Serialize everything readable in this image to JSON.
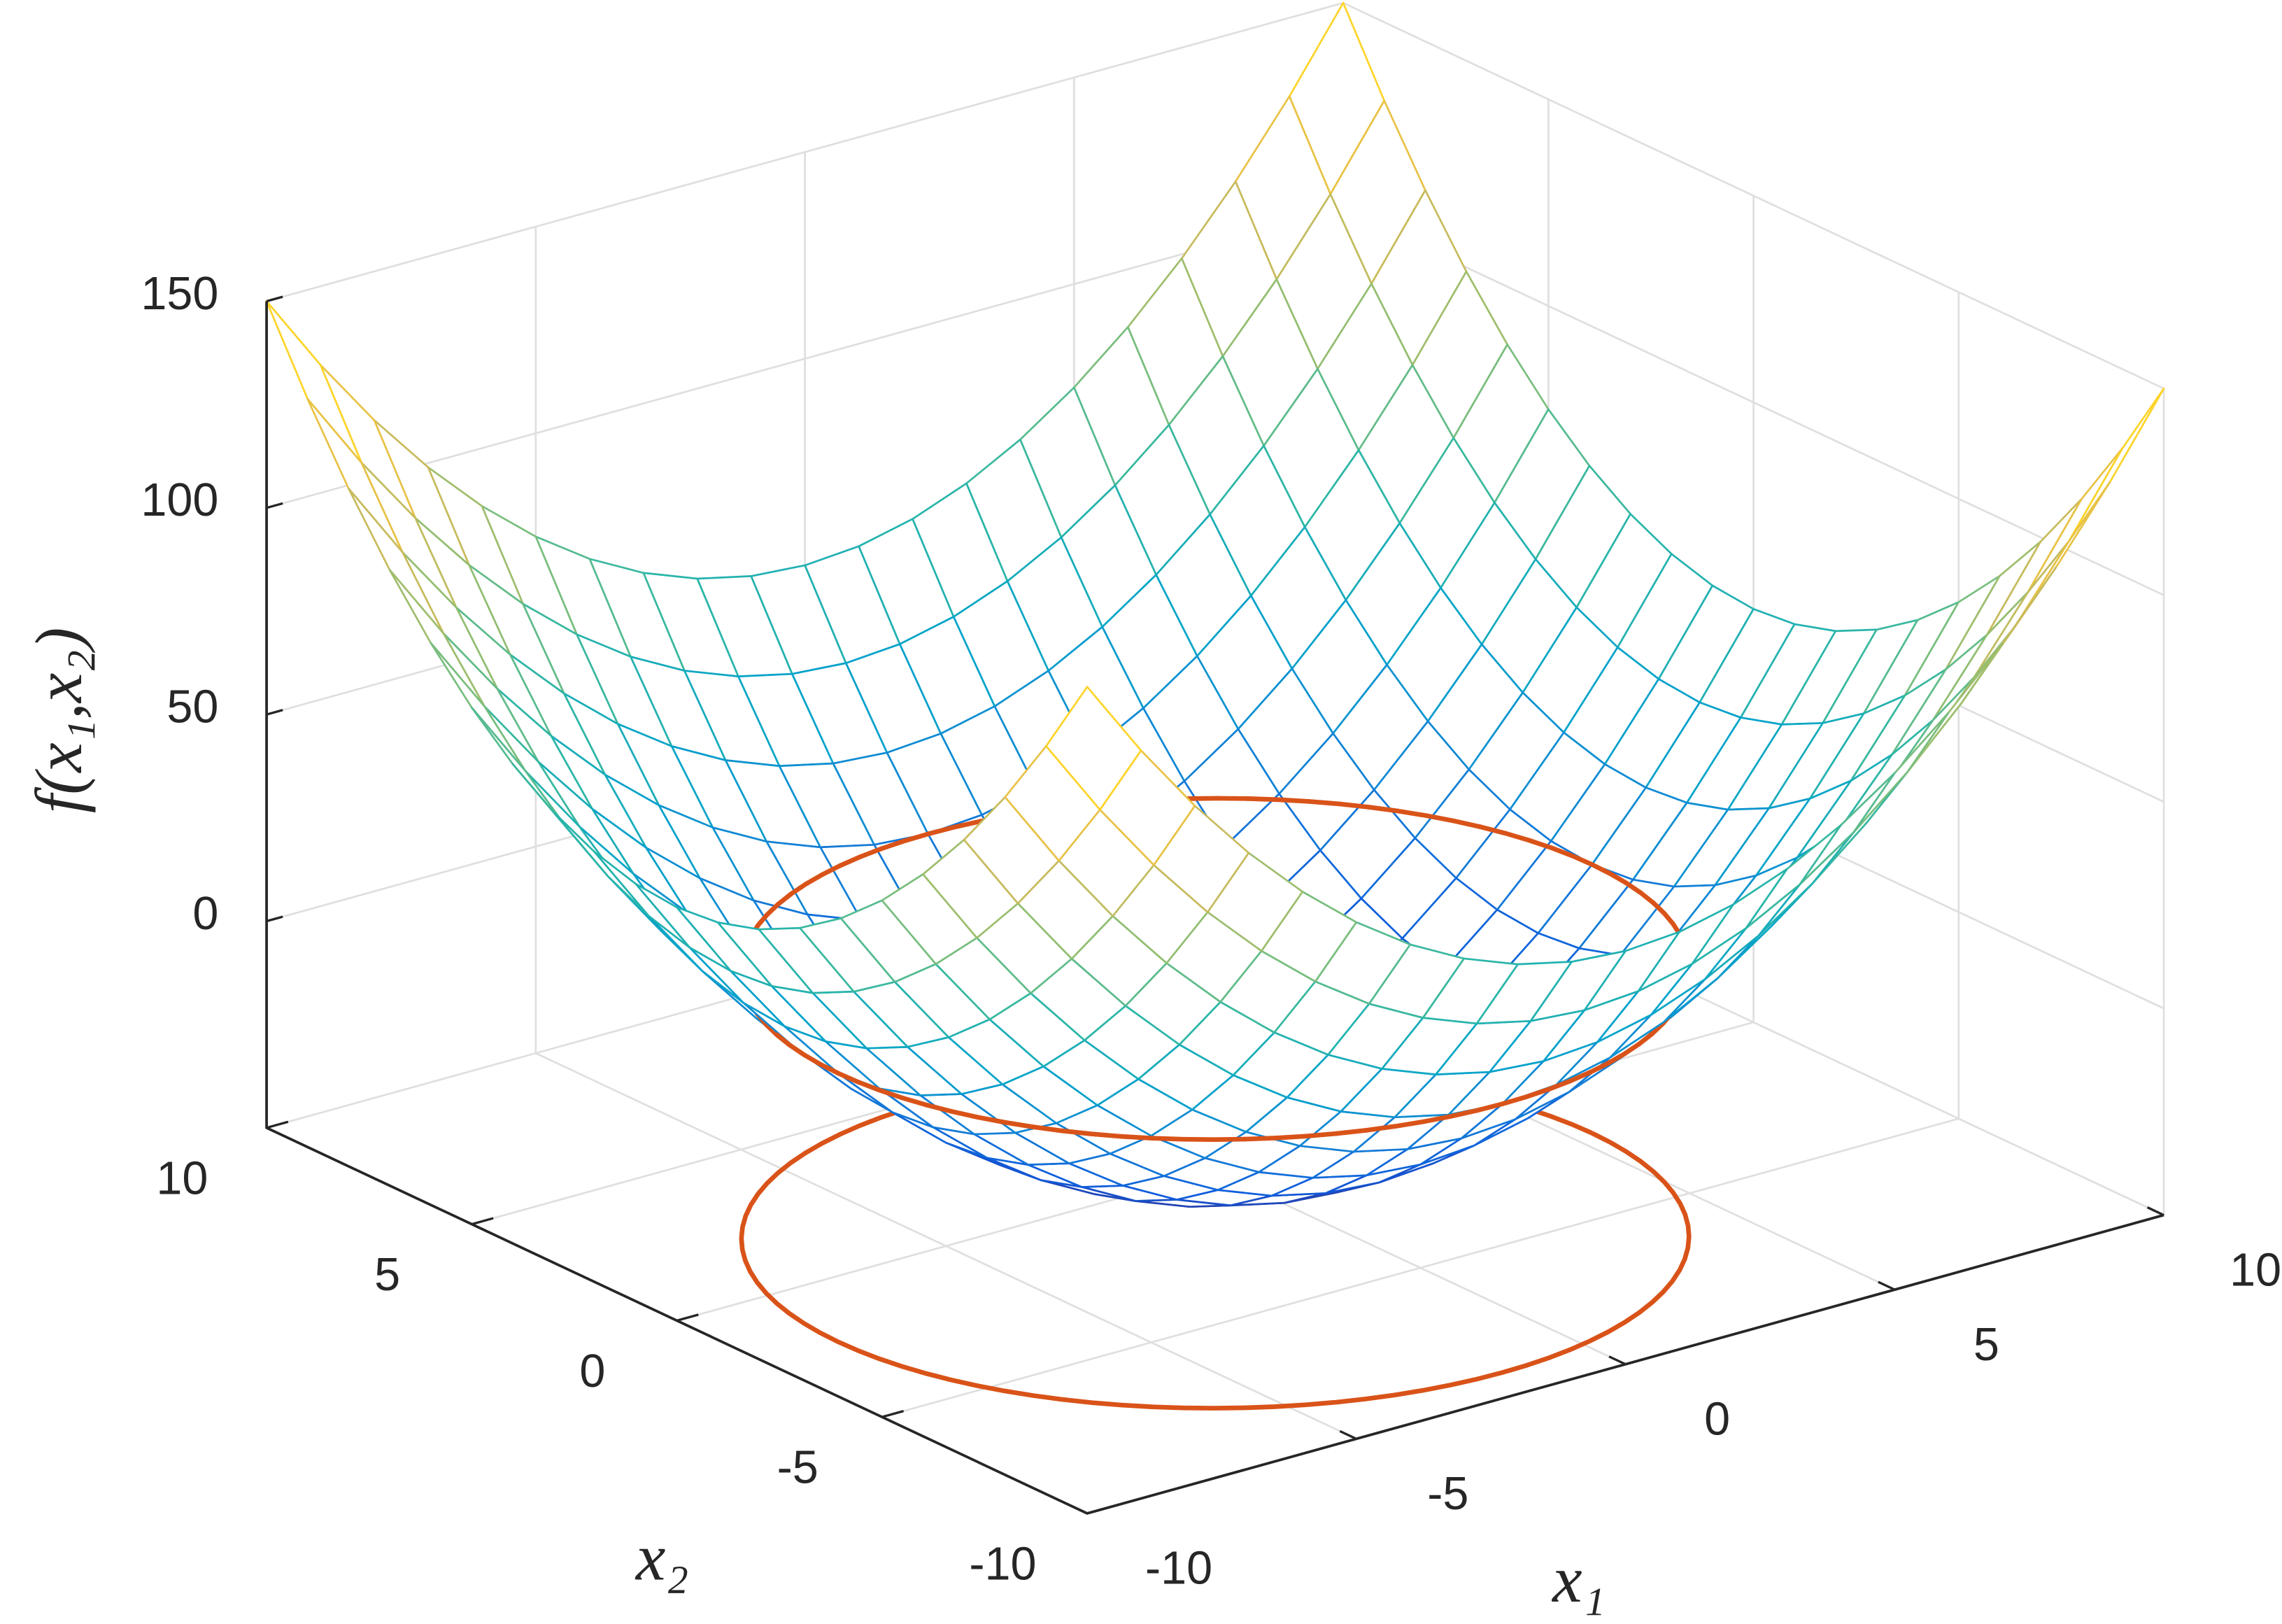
{
  "chart_data": {
    "type": "surface",
    "xlabel": "x₁",
    "ylabel": "x₂",
    "zlabel": "f(x₁,x₂)",
    "xlim": [
      -10,
      10
    ],
    "ylim": [
      -10,
      10
    ],
    "zlim": [
      -50,
      150
    ],
    "xticks": [
      -10,
      -5,
      0,
      5,
      10
    ],
    "yticks": [
      -10,
      -5,
      0,
      5,
      10
    ],
    "zticks": [
      0,
      50,
      100,
      150
    ],
    "grid": true,
    "colormap": [
      "#352a87",
      "#0f5cdd",
      "#1481d6",
      "#06a4ca",
      "#2eb7a4",
      "#87bf77",
      "#d1bb59",
      "#fec832",
      "#f9fb0e"
    ],
    "surface": {
      "x1": [
        -10,
        -9,
        -8,
        -7,
        -6,
        -5,
        -4,
        -3,
        -2,
        -1,
        0,
        1,
        2,
        3,
        4,
        5,
        6,
        7,
        8,
        9,
        10
      ],
      "x2": [
        -10,
        -9,
        -8,
        -7,
        -6,
        -5,
        -4,
        -3,
        -2,
        -1,
        0,
        1,
        2,
        3,
        4,
        5,
        6,
        7,
        8,
        9,
        10
      ],
      "z": [
        [
          150,
          131,
          114,
          99,
          86,
          75,
          66,
          59,
          54,
          51,
          50,
          51,
          54,
          59,
          66,
          75,
          86,
          99,
          114,
          131,
          150
        ],
        [
          131,
          112,
          95,
          80,
          67,
          56,
          47,
          40,
          35,
          32,
          31,
          32,
          35,
          40,
          47,
          56,
          67,
          80,
          95,
          112,
          131
        ],
        [
          114,
          95,
          78,
          63,
          50,
          39,
          30,
          23,
          18,
          15,
          14,
          15,
          18,
          23,
          30,
          39,
          50,
          63,
          78,
          95,
          114
        ],
        [
          99,
          80,
          63,
          48,
          35,
          24,
          15,
          8,
          3,
          0,
          -1,
          0,
          3,
          8,
          15,
          24,
          35,
          48,
          63,
          80,
          99
        ],
        [
          86,
          67,
          50,
          35,
          22,
          11,
          2,
          -5,
          -10,
          -13,
          -14,
          -13,
          -10,
          -5,
          2,
          11,
          22,
          35,
          50,
          67,
          86
        ],
        [
          75,
          56,
          39,
          24,
          11,
          0,
          -9,
          -16,
          -21,
          -24,
          -25,
          -24,
          -21,
          -16,
          -9,
          0,
          11,
          24,
          39,
          56,
          75
        ],
        [
          66,
          47,
          30,
          15,
          2,
          -9,
          -18,
          -25,
          -30,
          -33,
          -34,
          -33,
          -30,
          -25,
          -18,
          -9,
          2,
          15,
          30,
          47,
          66
        ],
        [
          59,
          40,
          23,
          8,
          -5,
          -16,
          -25,
          -32,
          -37,
          -40,
          -41,
          -40,
          -37,
          -32,
          -25,
          -16,
          -5,
          8,
          23,
          40,
          59
        ],
        [
          54,
          35,
          18,
          3,
          -10,
          -21,
          -30,
          -37,
          -42,
          -45,
          -46,
          -45,
          -42,
          -37,
          -30,
          -21,
          -10,
          3,
          18,
          35,
          54
        ],
        [
          51,
          32,
          15,
          0,
          -13,
          -24,
          -33,
          -40,
          -45,
          -48,
          -49,
          -48,
          -45,
          -40,
          -33,
          -24,
          -13,
          0,
          15,
          32,
          51
        ],
        [
          50,
          31,
          14,
          -1,
          -14,
          -25,
          -34,
          -41,
          -46,
          -49,
          -50,
          -49,
          -46,
          -41,
          -34,
          -25,
          -14,
          -1,
          14,
          31,
          50
        ],
        [
          51,
          32,
          15,
          0,
          -13,
          -24,
          -33,
          -40,
          -45,
          -48,
          -49,
          -48,
          -45,
          -40,
          -33,
          -24,
          -13,
          0,
          15,
          32,
          51
        ],
        [
          54,
          35,
          18,
          3,
          -10,
          -21,
          -30,
          -37,
          -42,
          -45,
          -46,
          -45,
          -42,
          -37,
          -30,
          -21,
          -10,
          3,
          18,
          35,
          54
        ],
        [
          59,
          40,
          23,
          8,
          -5,
          -16,
          -25,
          -32,
          -37,
          -40,
          -41,
          -40,
          -37,
          -32,
          -25,
          -16,
          -5,
          8,
          23,
          40,
          59
        ],
        [
          66,
          47,
          30,
          15,
          2,
          -9,
          -18,
          -25,
          -30,
          -33,
          -34,
          -33,
          -30,
          -25,
          -18,
          -9,
          2,
          15,
          30,
          47,
          66
        ],
        [
          75,
          56,
          39,
          24,
          11,
          0,
          -9,
          -16,
          -21,
          -24,
          -25,
          -24,
          -21,
          -16,
          -9,
          0,
          11,
          24,
          39,
          56,
          75
        ],
        [
          86,
          67,
          50,
          35,
          22,
          11,
          2,
          -5,
          -10,
          -13,
          -14,
          -13,
          -10,
          -5,
          2,
          11,
          22,
          35,
          50,
          67,
          86
        ],
        [
          99,
          80,
          63,
          48,
          35,
          24,
          15,
          8,
          3,
          0,
          -1,
          0,
          3,
          8,
          15,
          24,
          35,
          48,
          63,
          80,
          99
        ],
        [
          114,
          95,
          78,
          63,
          50,
          39,
          30,
          23,
          18,
          15,
          14,
          15,
          18,
          23,
          30,
          39,
          50,
          63,
          78,
          95,
          114
        ],
        [
          131,
          112,
          95,
          80,
          67,
          56,
          47,
          40,
          35,
          32,
          31,
          32,
          35,
          40,
          47,
          56,
          67,
          80,
          95,
          112,
          131
        ],
        [
          150,
          131,
          114,
          99,
          86,
          75,
          66,
          59,
          54,
          51,
          50,
          51,
          54,
          59,
          66,
          75,
          86,
          99,
          114,
          131,
          150
        ]
      ]
    },
    "circle": {
      "radius": 7,
      "levels": [
        -66,
        -1
      ],
      "color": "#d95319"
    }
  }
}
